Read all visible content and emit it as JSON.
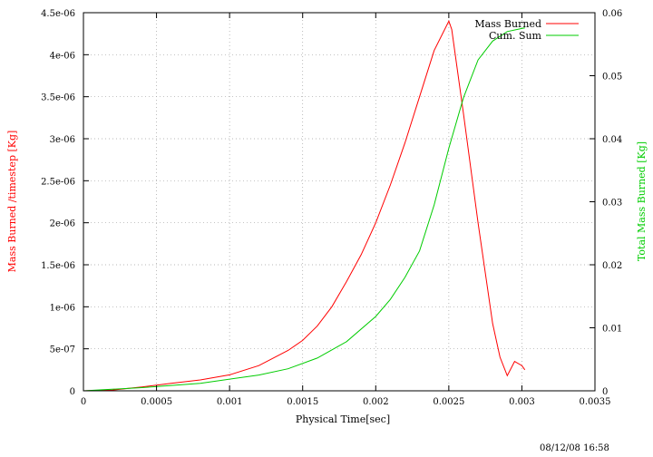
{
  "chart_data": {
    "type": "line",
    "xlabel": "Physical Time[sec]",
    "ylabel": "Mass Burned /timestep [Kg]",
    "y2label": "Total Mass Burned [Kg]",
    "xlim": [
      0,
      0.0035
    ],
    "ylim": [
      0,
      4.5e-06
    ],
    "y2lim": [
      0,
      0.06
    ],
    "xticks": [
      "0",
      "0.0005",
      "0.001",
      "0.0015",
      "0.002",
      "0.0025",
      "0.003",
      "0.0035"
    ],
    "yticks": [
      "0",
      "5e-07",
      "1e-06",
      "1.5e-06",
      "2e-06",
      "2.5e-06",
      "3e-06",
      "3.5e-06",
      "4e-06",
      "4.5e-06"
    ],
    "y2ticks": [
      "0",
      "0.01",
      "0.02",
      "0.03",
      "0.04",
      "0.05",
      "0.06"
    ],
    "grid": true,
    "legend_position": "top-right",
    "colors": {
      "mass_burned": "#ff0000",
      "cum_sum": "#00cc00"
    },
    "series": [
      {
        "name": "Mass Burned",
        "axis": "left",
        "x": [
          0,
          0.0002,
          0.0004,
          0.0006,
          0.0008,
          0.001,
          0.0012,
          0.0014,
          0.0015,
          0.0016,
          0.0017,
          0.0018,
          0.0019,
          0.002,
          0.0021,
          0.0022,
          0.0023,
          0.0024,
          0.0025,
          0.00252,
          0.0026,
          0.0027,
          0.0028,
          0.00285,
          0.0029,
          0.00295,
          0.003,
          0.00302
        ],
        "y": [
          0,
          1e-08,
          4.5e-08,
          9e-08,
          1.3e-07,
          1.9e-07,
          3e-07,
          4.8e-07,
          6e-07,
          7.7e-07,
          1e-06,
          1.3e-06,
          1.62e-06,
          2e-06,
          2.45e-06,
          2.95e-06,
          3.5e-06,
          4.05e-06,
          4.4e-06,
          4.3e-06,
          3.3e-06,
          2e-06,
          8e-07,
          4e-07,
          1.8e-07,
          3.5e-07,
          3e-07,
          2.5e-07
        ]
      },
      {
        "name": "Cum. Sum",
        "axis": "right",
        "x": [
          0,
          0.0004,
          0.0008,
          0.0012,
          0.0014,
          0.0016,
          0.0018,
          0.002,
          0.0021,
          0.0022,
          0.0023,
          0.0024,
          0.0025,
          0.0026,
          0.0027,
          0.0028,
          0.0029,
          0.003,
          0.00302
        ],
        "y": [
          0,
          0.0005,
          0.0012,
          0.0025,
          0.0035,
          0.0052,
          0.0078,
          0.0118,
          0.0145,
          0.018,
          0.0222,
          0.0295,
          0.0385,
          0.0465,
          0.0525,
          0.0555,
          0.057,
          0.0575,
          0.0576
        ]
      }
    ]
  },
  "timestamp": "08/12/08 16:58"
}
